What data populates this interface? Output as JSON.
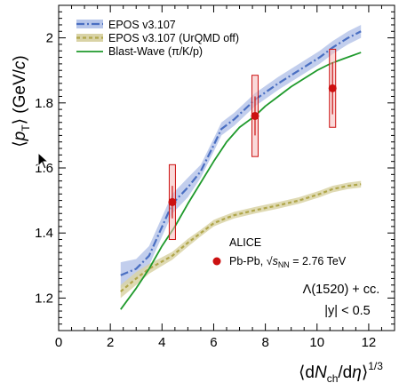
{
  "chart_data": {
    "type": "line",
    "xlim": [
      0,
      13
    ],
    "ylim": [
      1.1,
      2.1
    ],
    "x_ticks": [
      "0",
      "2",
      "4",
      "6",
      "8",
      "10",
      "12"
    ],
    "y_ticks": [
      "1.2",
      "1.4",
      "1.6",
      "1.8",
      "2"
    ],
    "xlabel": {
      "pre": "⟨d",
      "N": "N",
      "sub": "ch",
      "mid": "/d",
      "eta": "η",
      "post": "⟩",
      "sup": "1/3"
    },
    "ylabel": {
      "pre": "⟨",
      "p": "p",
      "sub": "T",
      "post": "⟩ (GeV/",
      "c": "c",
      "close": ")"
    },
    "series": [
      {
        "name": "EPOS v3.107",
        "color": "#4a6fc2",
        "band_color": "#b7c6ea",
        "style": "dashdot",
        "x": [
          2.4,
          3.0,
          3.5,
          4.4,
          5.0,
          5.5,
          6.0,
          6.3,
          6.8,
          7.6,
          8.5,
          9.3,
          10.1,
          10.6,
          11.2,
          11.7
        ],
        "y": [
          1.27,
          1.29,
          1.33,
          1.49,
          1.54,
          1.59,
          1.67,
          1.72,
          1.75,
          1.81,
          1.86,
          1.9,
          1.94,
          1.97,
          2.0,
          2.02
        ],
        "err": [
          0.04,
          0.03,
          0.03,
          0.03,
          0.03,
          0.02,
          0.02,
          0.02,
          0.02,
          0.02,
          0.02,
          0.02,
          0.02,
          0.02,
          0.02,
          0.02
        ]
      },
      {
        "name": "EPOS v3.107 (UrQMD off)",
        "color": "#b0a64a",
        "band_color": "#d9d3a6",
        "style": "dashed",
        "x": [
          2.4,
          3.0,
          3.5,
          4.4,
          5.0,
          5.5,
          6.0,
          6.3,
          6.8,
          7.6,
          8.5,
          9.3,
          10.1,
          10.6,
          11.2,
          11.7
        ],
        "y": [
          1.22,
          1.26,
          1.29,
          1.33,
          1.37,
          1.4,
          1.43,
          1.44,
          1.455,
          1.47,
          1.485,
          1.5,
          1.52,
          1.535,
          1.545,
          1.55
        ],
        "err": [
          0.02,
          0.02,
          0.015,
          0.012,
          0.012,
          0.01,
          0.01,
          0.01,
          0.01,
          0.01,
          0.01,
          0.01,
          0.01,
          0.01,
          0.01,
          0.01
        ]
      },
      {
        "name": "Blast-Wave (π/K/p)",
        "color": "#1f9a2c",
        "style": "solid",
        "x": [
          2.4,
          3.0,
          3.5,
          4.0,
          4.5,
          5.0,
          5.5,
          6.0,
          6.5,
          7.0,
          7.6,
          8.0,
          8.5,
          9.0,
          9.5,
          10.0,
          10.5,
          11.0,
          11.7
        ],
        "y": [
          1.165,
          1.23,
          1.29,
          1.36,
          1.42,
          1.49,
          1.555,
          1.62,
          1.68,
          1.725,
          1.76,
          1.79,
          1.82,
          1.85,
          1.875,
          1.9,
          1.92,
          1.935,
          1.955
        ]
      },
      {
        "name": "ALICE",
        "color": "#cc1111",
        "style": "points",
        "x": [
          4.4,
          7.6,
          10.6
        ],
        "y": [
          1.495,
          1.76,
          1.845
        ],
        "stat_err": [
          0.05,
          0.06,
          0.08
        ],
        "sys_err": [
          0.115,
          0.125,
          0.12
        ]
      }
    ],
    "legend": {
      "placement": "top-left",
      "entries": [
        "EPOS v3.107",
        "EPOS v3.107 (UrQMD off)",
        "Blast-Wave (π/K/p)"
      ]
    },
    "data_legend": {
      "title": "ALICE",
      "label_pre": "Pb-Pb, ",
      "sqrt": "√",
      "s": "s",
      "s_sub": "NN",
      "label_post": " = 2.76 TeV"
    },
    "annotations": {
      "particle": "Λ(1520) + cc.",
      "rapidity": "|y| < 0.5"
    }
  }
}
